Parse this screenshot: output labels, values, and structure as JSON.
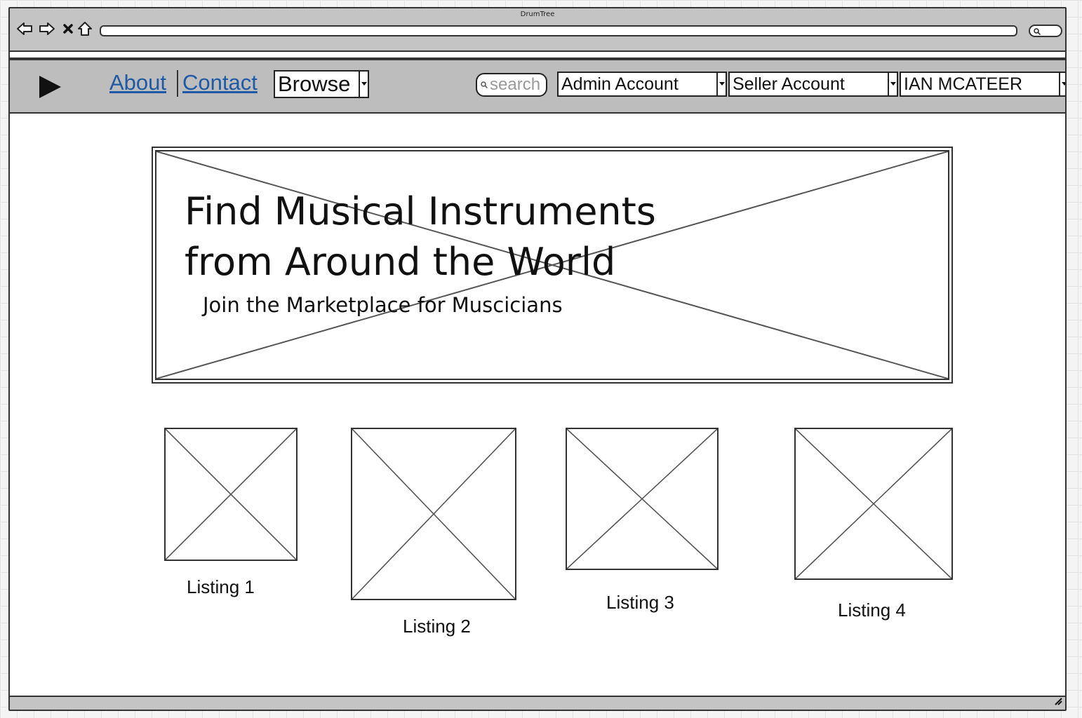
{
  "window": {
    "title": "DrumTree"
  },
  "browser": {
    "nav_icons": [
      "back-arrow-icon",
      "forward-arrow-icon",
      "close-x-icon",
      "home-icon"
    ],
    "url_value": "",
    "search_icon": "magnifier-icon"
  },
  "navbar": {
    "logo_icon": "play-triangle-icon",
    "links": [
      {
        "label": "About"
      },
      {
        "label": "Contact"
      }
    ],
    "browse": {
      "value": "Browse"
    },
    "search": {
      "placeholder": "search"
    },
    "admin_account": {
      "value": "Admin Account"
    },
    "seller_account": {
      "value": "Seller Account"
    },
    "user_account": {
      "value": "IAN MCATEER"
    }
  },
  "hero": {
    "title": "Find Musical Instruments from Around the World",
    "subtitle": "Join the Marketplace for Muscicians"
  },
  "listings": [
    {
      "label": "Listing 1"
    },
    {
      "label": "Listing 2"
    },
    {
      "label": "Listing 3"
    },
    {
      "label": "Listing 4"
    }
  ],
  "colors": {
    "chrome": "#c4c4c4",
    "navbar": "#bdbdbd",
    "link": "#1f5aa6",
    "stroke": "#333333"
  }
}
